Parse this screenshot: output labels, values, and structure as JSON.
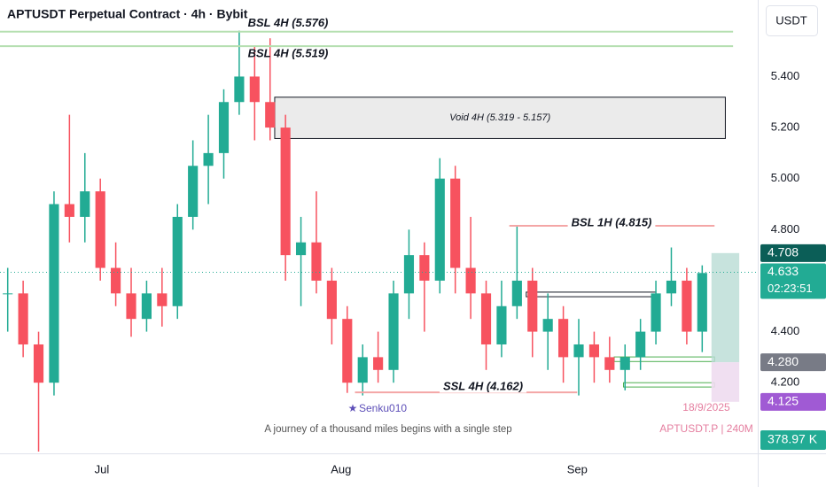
{
  "chart_data": {
    "type": "candlestick",
    "title": "APTUSDT Perpetual Contract · 4h · Bybit",
    "currency": "USDT",
    "up_color": "#22ab94",
    "down_color": "#f7525f",
    "xlim": [
      0,
      49.1
    ],
    "ylim": [
      3.93,
      5.7
    ],
    "xticks": [
      {
        "value": 6.6,
        "label": "Jul"
      },
      {
        "value": 22.1,
        "label": "Aug"
      },
      {
        "value": 37.4,
        "label": "Sep"
      }
    ],
    "yticks": [
      {
        "value": 4.2,
        "label": "4.200"
      },
      {
        "value": 4.4,
        "label": "4.400"
      },
      {
        "value": 4.8,
        "label": "4.800"
      },
      {
        "value": 5.0,
        "label": "5.000"
      },
      {
        "value": 5.2,
        "label": "5.200"
      },
      {
        "value": 5.4,
        "label": "5.400"
      }
    ],
    "open": [
      4.55,
      4.55,
      4.35,
      4.2,
      4.9,
      4.85,
      4.95,
      4.65,
      4.55,
      4.45,
      4.55,
      4.5,
      4.85,
      5.05,
      5.1,
      5.3,
      5.4,
      5.3,
      5.2,
      4.7,
      4.75,
      4.6,
      4.45,
      4.2,
      4.3,
      4.25,
      4.55,
      4.7,
      4.6,
      5.0,
      4.65,
      4.55,
      4.35,
      4.5,
      4.6,
      4.4,
      4.45,
      4.3,
      4.35,
      4.3,
      4.25,
      4.3,
      4.4,
      4.55,
      4.6,
      4.4
    ],
    "high": [
      4.65,
      4.6,
      4.4,
      4.95,
      5.25,
      5.1,
      5.0,
      4.75,
      4.65,
      4.6,
      4.65,
      4.9,
      5.15,
      5.25,
      5.35,
      5.58,
      5.52,
      5.55,
      5.25,
      4.85,
      4.95,
      4.65,
      4.5,
      4.35,
      4.4,
      4.6,
      4.8,
      4.75,
      5.08,
      5.05,
      4.85,
      4.6,
      4.6,
      4.815,
      4.65,
      4.55,
      4.5,
      4.45,
      4.4,
      4.38,
      4.35,
      4.45,
      4.6,
      4.73,
      4.65,
      4.66
    ],
    "low": [
      4.4,
      4.3,
      3.93,
      4.15,
      4.75,
      4.75,
      4.6,
      4.5,
      4.38,
      4.4,
      4.42,
      4.45,
      4.8,
      4.9,
      5.0,
      5.25,
      5.15,
      5.15,
      4.6,
      4.5,
      4.55,
      4.35,
      4.16,
      4.15,
      4.2,
      4.2,
      4.45,
      4.4,
      4.55,
      4.55,
      4.45,
      4.25,
      4.3,
      4.45,
      4.3,
      4.25,
      4.2,
      4.15,
      4.2,
      4.2,
      4.17,
      4.25,
      4.35,
      4.5,
      4.35,
      4.32
    ],
    "close": [
      4.55,
      4.35,
      4.2,
      4.9,
      4.85,
      4.95,
      4.65,
      4.55,
      4.45,
      4.55,
      4.5,
      4.85,
      5.05,
      5.1,
      5.3,
      5.4,
      5.3,
      5.2,
      4.7,
      4.75,
      4.6,
      4.45,
      4.2,
      4.3,
      4.25,
      4.55,
      4.7,
      4.6,
      5.0,
      4.65,
      4.55,
      4.35,
      4.5,
      4.6,
      4.4,
      4.45,
      4.3,
      4.35,
      4.3,
      4.25,
      4.3,
      4.4,
      4.55,
      4.6,
      4.4,
      4.63
    ],
    "levels": [
      {
        "text": "BSL 4H (5.576)",
        "value": 5.576,
        "x": [
          0,
          47.5
        ],
        "color": "#b5dfb0"
      },
      {
        "text": "BSL 4H (5.519)",
        "value": 5.519,
        "x": [
          0,
          47.5
        ],
        "color": "#b5dfb0"
      },
      {
        "text": "BSL 1H (4.815)",
        "value": 4.815,
        "x": [
          33.0,
          46.3
        ],
        "color": "#f4a6a6"
      },
      {
        "text": "SSL 4H (4.162)",
        "value": 4.162,
        "x": [
          23.0,
          37.4
        ],
        "color": "#f4a6a6"
      }
    ],
    "void": {
      "text": "Void 4H (5.319 - 5.157)",
      "high": 5.319,
      "low": 5.157,
      "x": [
        17.8,
        47.0
      ]
    },
    "zones": [
      {
        "high": 4.555,
        "low": 4.537,
        "x": [
          34.1,
          42.5
        ],
        "color": "#131722"
      },
      {
        "high": 4.301,
        "low": 4.283,
        "x": [
          39.8,
          46.3
        ],
        "color": "#4caf50"
      },
      {
        "high": 4.2,
        "low": 4.183,
        "x": [
          40.4,
          46.3
        ],
        "color": "#4caf50"
      }
    ],
    "position": {
      "target": 4.708,
      "entry": {
        "value": 4.28,
        "label": "4.280"
      },
      "stop": 4.125,
      "x": [
        46.1,
        47.9
      ]
    },
    "last_price": 4.633,
    "countdown": "02:23:51",
    "volume_label": "378.97 K",
    "author": "Senku010",
    "quote": "A journey of a thousand miles begins with a single step",
    "date": "18/9/2025",
    "symbol_label": "APTUSDT.P | 240M"
  }
}
